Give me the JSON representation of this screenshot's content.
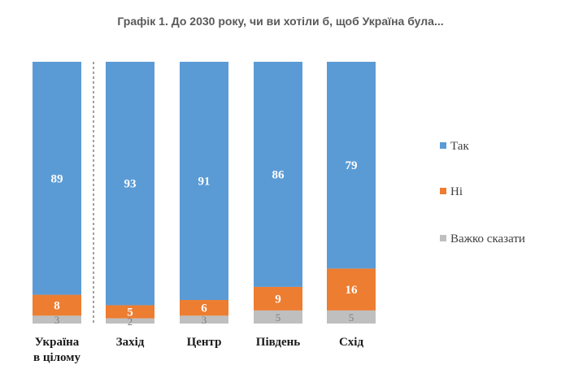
{
  "chart_data": {
    "type": "bar",
    "stacked": true,
    "title": "Графік 1. До 2030 року, чи ви хотіли б, щоб Україна була...",
    "categories": [
      [
        "Україна",
        "в цілому"
      ],
      [
        "Захід"
      ],
      [
        "Центр"
      ],
      [
        "Південь"
      ],
      [
        "Схід"
      ]
    ],
    "series": [
      {
        "name": "Важко сказати",
        "color": "#bfbfbf",
        "values": [
          3,
          2,
          3,
          5,
          5
        ]
      },
      {
        "name": "Ні",
        "color": "#ed7d31",
        "values": [
          8,
          5,
          6,
          9,
          16
        ]
      },
      {
        "name": "Так",
        "color": "#5b9bd5",
        "values": [
          89,
          93,
          91,
          86,
          79
        ]
      }
    ],
    "legend_order": [
      "Так",
      "Ні",
      "Важко сказати"
    ],
    "legend_position": "right",
    "ylim": [
      0,
      100
    ],
    "separator_after_category": 0,
    "grid": false
  }
}
